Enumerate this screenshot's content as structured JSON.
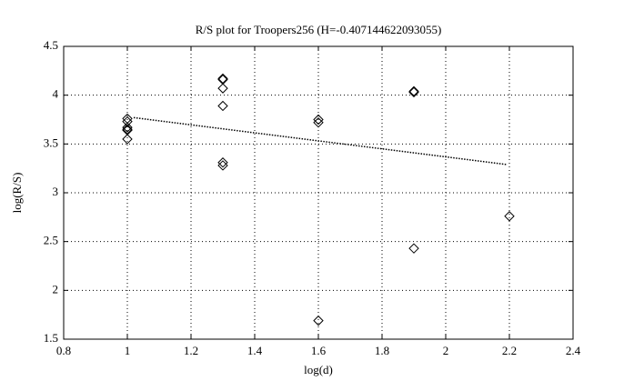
{
  "chart_data": {
    "type": "scatter",
    "title": "R/S plot for Troopers256 (H=-0.407144622093055)",
    "xlabel": "log(d)",
    "ylabel": "log(R/S)",
    "x": [
      1,
      1,
      1,
      1,
      1,
      1,
      1.3,
      1.3,
      1.3,
      1.3,
      1.3,
      1.3,
      1.6,
      1.6,
      1.6,
      1.9,
      1.9,
      1.9,
      2.2
    ],
    "values": [
      3.76,
      3.73,
      3.67,
      3.65,
      3.64,
      3.55,
      4.17,
      4.16,
      4.07,
      3.89,
      3.31,
      3.28,
      3.75,
      3.72,
      1.69,
      4.04,
      4.03,
      2.43,
      2.76
    ],
    "color": "#000000",
    "fit": {
      "x": [
        1.02,
        2.19
      ],
      "values": [
        3.77,
        3.29
      ]
    },
    "xlim": [
      0.8,
      2.4
    ],
    "xticks": [
      0.8,
      1,
      1.2,
      1.4,
      1.6,
      1.8,
      2,
      2.2,
      2.4
    ],
    "ylim": [
      1.5,
      4.5
    ],
    "yticks": [
      1.5,
      2,
      2.5,
      3,
      3.5,
      4,
      4.5
    ],
    "grid": true
  }
}
